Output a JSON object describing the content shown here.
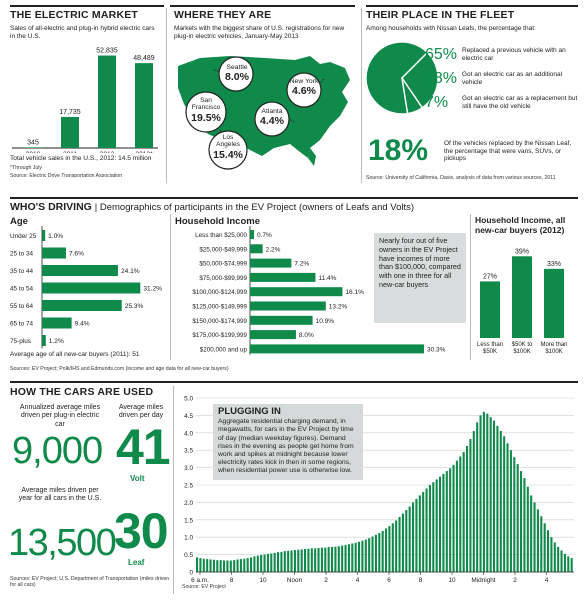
{
  "market": {
    "title": "THE ELECTRIC MARKET",
    "desc": "Sales of all-electric and plug-in hybrid electric cars in the U.S.",
    "total": "Total vehicle sales in the U.S., 2012: 14.5 million",
    "note": "*Through July",
    "source": "Source: Electric Drive Transportation Association"
  },
  "where": {
    "title": "WHERE THEY ARE",
    "desc": "Markets with the biggest share of U.S. registrations for new plug-in electric vehicles, January-May 2013",
    "cities": [
      {
        "name": "Seattle",
        "pct": "8.0%"
      },
      {
        "name": "New York",
        "pct": "4.6%"
      },
      {
        "name": "San Francisco",
        "pct": "19.5%"
      },
      {
        "name": "Atlanta",
        "pct": "4.4%"
      },
      {
        "name": "Los Angeles",
        "pct": "15.4%"
      }
    ]
  },
  "fleet": {
    "title": "THEIR PLACE IN THE FLEET",
    "desc": "Among households with Nissan Leafs, the percentage that:",
    "items": [
      {
        "pct": "65%",
        "text": "Replaced a previous vehicle with an electric car"
      },
      {
        "pct": "28%",
        "text": "Got an electric car as an additional vehicle"
      },
      {
        "pct": "7%",
        "text": "Got an electric car as a replacement but still have the old vehicle"
      }
    ],
    "big_pct": "18%",
    "big_text": "Of the vehicles replaced by the Nissan Leaf, the percentage that were vans, SUVs, or pickups",
    "source": "Source: University of California, Davis, analysis of data from various sources, 2011"
  },
  "driving": {
    "title": "WHO'S DRIVING",
    "subtitle": "| Demographics of participants in the EV Project (owners of Leafs and Volts)",
    "age_title": "Age",
    "age_note": "Average age of all new-car buyers (2011): 51",
    "income_title": "Household Income",
    "callout": "Nearly four out of five owners in the EV Project have incomes of more than $100,000, compared with one in three for all new-car buyers",
    "all_title": "Household Income, all new-car buyers (2012)",
    "source": "Sources: EV Project; Polk/IHS and Edmunds.com (income and age data for all new-car buyers)"
  },
  "used": {
    "title": "HOW THE CARS ARE USED",
    "annual_label": "Annualized average miles driven per plug-in electric car",
    "annual_value": "9,000",
    "daily_label": "Average miles driven per day",
    "volt_value": "41",
    "volt_label": "Volt",
    "all_label": "Average miles driven per year for all cars in the U.S.",
    "all_value": "13,500",
    "leaf_value": "30",
    "leaf_label": "Leaf",
    "source": "Sources: EV Project; U.S. Department of Transportation (miles driven for all cars)",
    "plug_title": "PLUGGING IN",
    "plug_text": "Aggregate residential charging demand, in megawatts, for cars in the EV Project by time of day (median weekday figures). Demand rises in the evening as people get home from work and spikes at midnight because lower electricity rates kick in then in some regions, when residential power use is otherwise low.",
    "plug_source": "Source: EV Project"
  },
  "chart_data": [
    {
      "type": "bar",
      "categories": [
        "2010",
        "2011",
        "2012",
        "2013*"
      ],
      "values": [
        345,
        17735,
        52835,
        48489
      ],
      "labels": [
        "345",
        "17,735",
        "52,835",
        "48,489"
      ],
      "ylim": [
        0,
        56000
      ],
      "color": "#0f8a4b"
    },
    {
      "type": "pie",
      "categories": [
        "Replaced a previous vehicle",
        "Additional vehicle",
        "Replacement but kept old vehicle"
      ],
      "values": [
        65,
        28,
        7
      ],
      "color": "#0f8a4b"
    },
    {
      "type": "bar",
      "orientation": "horizontal",
      "title": "Age",
      "categories": [
        "Under 25",
        "25 to 34",
        "35 to 44",
        "45 to 54",
        "55 to 64",
        "65 to 74",
        "75-plus"
      ],
      "values": [
        1.0,
        7.6,
        24.1,
        31.2,
        25.3,
        9.4,
        1.2
      ],
      "labels": [
        "1.0%",
        "7.6%",
        "24.1%",
        "31.2%",
        "25.3%",
        "9.4%",
        "1.2%"
      ],
      "xlim": [
        0,
        33
      ],
      "color": "#0f8a4b"
    },
    {
      "type": "bar",
      "orientation": "horizontal",
      "title": "Household Income",
      "categories": [
        "Less than $25,000",
        "$25,000-$49,999",
        "$50,000-$74,999",
        "$75,000-$99,999",
        "$100,000-$124,999",
        "$125,000-$149,999",
        "$150,000-$174,999",
        "$175,000-$199,999",
        "$200,000 and up"
      ],
      "values": [
        0.7,
        2.2,
        7.2,
        11.4,
        16.1,
        13.2,
        10.9,
        8.0,
        30.3
      ],
      "labels": [
        "0.7%",
        "2.2%",
        "7.2%",
        "11.4%",
        "16.1%",
        "13.2%",
        "10.9%",
        "8.0%",
        "30.3%"
      ],
      "xlim": [
        0,
        31
      ],
      "color": "#0f8a4b"
    },
    {
      "type": "bar",
      "title": "Household Income, all new-car buyers (2012)",
      "categories": [
        "Less than $50K",
        "$50K to $100K",
        "More than $100K"
      ],
      "values": [
        27,
        39,
        33
      ],
      "labels": [
        "27%",
        "39%",
        "33%"
      ],
      "ylim": [
        0,
        42
      ],
      "color": "#0f8a4b"
    },
    {
      "type": "bar",
      "title": "PLUGGING IN",
      "ylim": [
        0,
        5.0
      ],
      "yticks": [
        "0",
        "0.5",
        "1.0",
        "1.5",
        "2.0",
        "2.5",
        "3.0",
        "3.5",
        "4.0",
        "4.5",
        "5.0"
      ],
      "xticks": [
        "6 a.m.",
        "8",
        "10",
        "Noon",
        "2",
        "4",
        "6",
        "8",
        "10",
        "Midnight",
        "2",
        "4"
      ],
      "interval": "15 min",
      "values": [
        0.42,
        0.4,
        0.38,
        0.37,
        0.36,
        0.35,
        0.34,
        0.34,
        0.33,
        0.33,
        0.33,
        0.34,
        0.36,
        0.37,
        0.38,
        0.4,
        0.42,
        0.45,
        0.47,
        0.49,
        0.5,
        0.52,
        0.53,
        0.55,
        0.57,
        0.58,
        0.6,
        0.61,
        0.62,
        0.63,
        0.64,
        0.65,
        0.66,
        0.67,
        0.68,
        0.68,
        0.69,
        0.7,
        0.7,
        0.72,
        0.72,
        0.73,
        0.74,
        0.76,
        0.78,
        0.8,
        0.82,
        0.84,
        0.87,
        0.9,
        0.93,
        0.97,
        1.02,
        1.07,
        1.12,
        1.18,
        1.25,
        1.32,
        1.4,
        1.48,
        1.58,
        1.68,
        1.78,
        1.88,
        2.0,
        2.1,
        2.2,
        2.3,
        2.4,
        2.5,
        2.58,
        2.66,
        2.74,
        2.82,
        2.9,
        2.98,
        3.08,
        3.2,
        3.32,
        3.45,
        3.62,
        3.82,
        4.05,
        4.3,
        4.5,
        4.6,
        4.55,
        4.45,
        4.35,
        4.2,
        4.05,
        3.9,
        3.7,
        3.5,
        3.3,
        3.1,
        2.9,
        2.7,
        2.45,
        2.2,
        2.0,
        1.8,
        1.6,
        1.4,
        1.2,
        1.0,
        0.85,
        0.72,
        0.62,
        0.52,
        0.45,
        0.4
      ],
      "color": "#0f8a4b"
    }
  ]
}
